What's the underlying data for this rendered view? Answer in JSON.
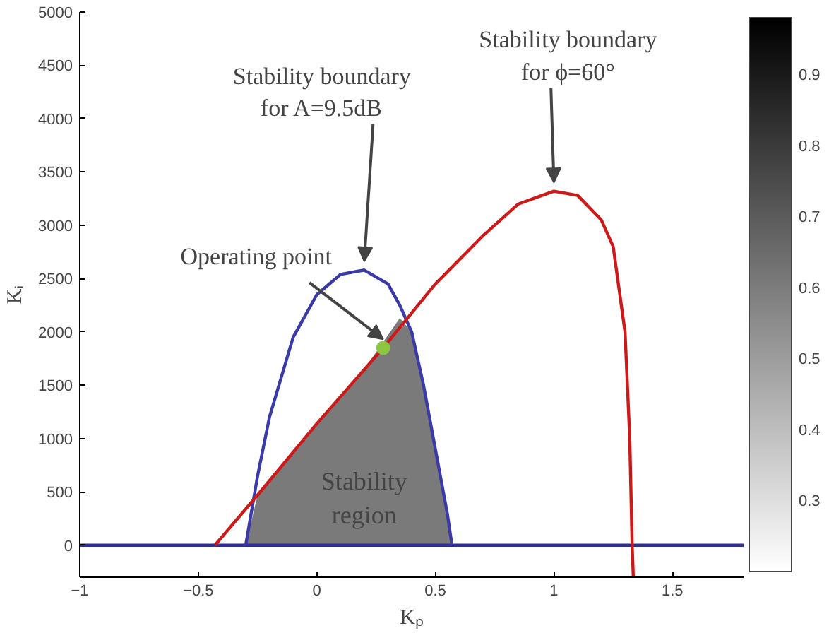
{
  "chart_data": {
    "type": "line",
    "xlabel": "Kₚ",
    "ylabel": "Kᵢ",
    "xlim": [
      -1,
      1.8
    ],
    "xticks": [
      -1,
      -0.5,
      0,
      0.5,
      1,
      1.5
    ],
    "ylim": [
      -300,
      5000
    ],
    "yticks": [
      0,
      500,
      1000,
      1500,
      2000,
      2500,
      3000,
      3500,
      4000,
      4500,
      5000
    ],
    "grid": false,
    "clim": [
      0.2,
      0.98
    ],
    "cticks": [
      0.3,
      0.4,
      0.5,
      0.6,
      0.7,
      0.8,
      0.9
    ],
    "series": [
      {
        "type": "area",
        "color": "#7a7a7a",
        "x": [
          -0.3,
          -0.25,
          0,
          0.2,
          0.35,
          0.4,
          0.45,
          0.5,
          0.55,
          0.57
        ],
        "values": [
          0,
          470,
          1140,
          1650,
          2130,
          2000,
          1500,
          900,
          300,
          0
        ]
      },
      {
        "color": "#2e2e9a",
        "x": [
          -1,
          1.8
        ],
        "values": [
          0,
          0
        ]
      },
      {
        "color": "#3a3aa8",
        "x": [
          -0.3,
          -0.25,
          -0.2,
          -0.1,
          0,
          0.1,
          0.2,
          0.3,
          0.35,
          0.4,
          0.45,
          0.5,
          0.55,
          0.57
        ],
        "values": [
          0,
          650,
          1200,
          1950,
          2350,
          2540,
          2580,
          2450,
          2250,
          2000,
          1500,
          900,
          300,
          0
        ]
      },
      {
        "color": "#cc1a1a",
        "x": [
          -0.43,
          -0.25,
          0,
          0.28,
          0.5,
          0.7,
          0.85,
          1.0,
          1.1,
          1.2,
          1.25,
          1.3,
          1.32,
          1.33,
          1.335
        ],
        "values": [
          0,
          470,
          1140,
          1850,
          2450,
          2900,
          3200,
          3320,
          3280,
          3050,
          2800,
          2000,
          1000,
          0,
          -300
        ]
      },
      {
        "type": "scatter",
        "color": "#8dc63f",
        "marker": "circle",
        "x": [
          0.28
        ],
        "values": [
          1850
        ]
      }
    ],
    "annotations": [
      {
        "text": "Stability boundary\nfor A=9.5dB",
        "x": 0.2,
        "y": 2580
      },
      {
        "text": "Stability boundary\nfor ϕ=60°",
        "x": 1.0,
        "y": 3320
      },
      {
        "text": "Operating point",
        "x": 0.28,
        "y": 1850
      },
      "Stability\nregion"
    ]
  }
}
